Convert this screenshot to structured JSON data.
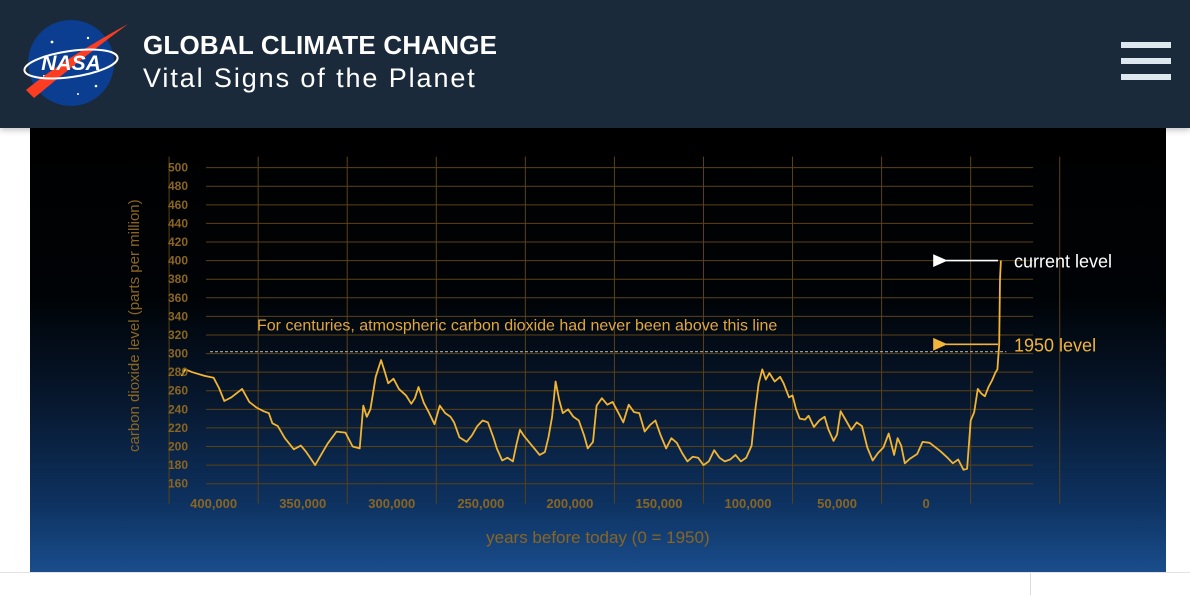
{
  "header": {
    "logo_text": "NASA",
    "title": "GLOBAL CLIMATE CHANGE",
    "subtitle": "Vital Signs of the Planet"
  },
  "colors": {
    "header_bg": "#1b2a3b",
    "grid": "#5b4215",
    "tick_text": "#8a6522",
    "series": "#f1b433",
    "annotation_gold": "#f2b43b",
    "annotation_white": "#ffffff"
  },
  "chart_data": {
    "type": "line",
    "title": "",
    "xlabel": "years before today (0 = 1950)",
    "ylabel": "carbon dioxide level (parts per million)",
    "xlim": [
      420000,
      -60000
    ],
    "ylim": [
      150,
      505
    ],
    "x_ticks": [
      {
        "value": 400000,
        "label": "400,000"
      },
      {
        "value": 350000,
        "label": "350,000"
      },
      {
        "value": 300000,
        "label": "300,000"
      },
      {
        "value": 250000,
        "label": "250,000"
      },
      {
        "value": 200000,
        "label": "200,000"
      },
      {
        "value": 150000,
        "label": "150,000"
      },
      {
        "value": 100000,
        "label": "100,000"
      },
      {
        "value": 50000,
        "label": "50,000"
      },
      {
        "value": 0,
        "label": "0"
      }
    ],
    "y_ticks": [
      160,
      180,
      200,
      220,
      240,
      260,
      280,
      300,
      320,
      340,
      360,
      380,
      400,
      420,
      440,
      460,
      480,
      500
    ],
    "series": [
      {
        "name": "CO2 concentration",
        "points": [
          [
            418000,
            276
          ],
          [
            416000,
            283
          ],
          [
            412000,
            280
          ],
          [
            405000,
            276
          ],
          [
            400000,
            274
          ],
          [
            397000,
            263
          ],
          [
            394000,
            249
          ],
          [
            390000,
            253
          ],
          [
            384000,
            262
          ],
          [
            380000,
            248
          ],
          [
            376000,
            242
          ],
          [
            372000,
            238
          ],
          [
            369000,
            236
          ],
          [
            367000,
            225
          ],
          [
            364000,
            222
          ],
          [
            360000,
            209
          ],
          [
            355000,
            197
          ],
          [
            351000,
            201
          ],
          [
            348000,
            194
          ],
          [
            343000,
            180
          ],
          [
            340000,
            190
          ],
          [
            336000,
            203
          ],
          [
            331000,
            216
          ],
          [
            326000,
            215
          ],
          [
            322000,
            200
          ],
          [
            318000,
            198
          ],
          [
            316000,
            244
          ],
          [
            314000,
            232
          ],
          [
            312000,
            240
          ],
          [
            309000,
            275
          ],
          [
            306000,
            293
          ],
          [
            304000,
            281
          ],
          [
            302000,
            268
          ],
          [
            299000,
            273
          ],
          [
            296000,
            262
          ],
          [
            292000,
            255
          ],
          [
            289000,
            246
          ],
          [
            287000,
            252
          ],
          [
            285000,
            264
          ],
          [
            282000,
            247
          ],
          [
            279000,
            236
          ],
          [
            276000,
            224
          ],
          [
            273000,
            244
          ],
          [
            270000,
            236
          ],
          [
            267000,
            232
          ],
          [
            265000,
            226
          ],
          [
            262000,
            210
          ],
          [
            258000,
            205
          ],
          [
            255000,
            212
          ],
          [
            252000,
            222
          ],
          [
            249000,
            228
          ],
          [
            246000,
            226
          ],
          [
            243000,
            210
          ],
          [
            241000,
            198
          ],
          [
            238000,
            185
          ],
          [
            235000,
            188
          ],
          [
            232000,
            184
          ],
          [
            230000,
            202
          ],
          [
            228000,
            218
          ],
          [
            226000,
            212
          ],
          [
            223000,
            205
          ],
          [
            220000,
            198
          ],
          [
            217000,
            191
          ],
          [
            214000,
            194
          ],
          [
            212000,
            210
          ],
          [
            210000,
            232
          ],
          [
            208000,
            270
          ],
          [
            206000,
            250
          ],
          [
            204000,
            236
          ],
          [
            201000,
            240
          ],
          [
            198000,
            232
          ],
          [
            195000,
            228
          ],
          [
            192000,
            212
          ],
          [
            190000,
            198
          ],
          [
            187000,
            205
          ],
          [
            185000,
            244
          ],
          [
            182000,
            252
          ],
          [
            179000,
            245
          ],
          [
            176000,
            248
          ],
          [
            173000,
            237
          ],
          [
            170000,
            226
          ],
          [
            167000,
            245
          ],
          [
            164000,
            237
          ],
          [
            161000,
            236
          ],
          [
            158000,
            216
          ],
          [
            155000,
            223
          ],
          [
            152000,
            228
          ],
          [
            149000,
            212
          ],
          [
            146000,
            198
          ],
          [
            143000,
            209
          ],
          [
            140000,
            204
          ],
          [
            137000,
            193
          ],
          [
            134000,
            184
          ],
          [
            131000,
            189
          ],
          [
            128000,
            188
          ],
          [
            125000,
            180
          ],
          [
            122000,
            184
          ],
          [
            119000,
            196
          ],
          [
            116000,
            188
          ],
          [
            113000,
            184
          ],
          [
            110000,
            186
          ],
          [
            107000,
            191
          ],
          [
            104000,
            184
          ],
          [
            101000,
            188
          ],
          [
            98000,
            201
          ],
          [
            96000,
            238
          ],
          [
            94000,
            268
          ],
          [
            92000,
            283
          ],
          [
            90000,
            272
          ],
          [
            88000,
            279
          ],
          [
            85000,
            270
          ],
          [
            82000,
            275
          ],
          [
            80000,
            268
          ],
          [
            77000,
            253
          ],
          [
            75000,
            255
          ],
          [
            73000,
            240
          ],
          [
            71000,
            230
          ],
          [
            68000,
            229
          ],
          [
            66000,
            233
          ],
          [
            63000,
            221
          ],
          [
            60000,
            228
          ],
          [
            57000,
            232
          ],
          [
            55000,
            219
          ],
          [
            52000,
            206
          ],
          [
            50000,
            213
          ],
          [
            48000,
            238
          ],
          [
            45000,
            228
          ],
          [
            42000,
            218
          ],
          [
            39000,
            226
          ],
          [
            36000,
            222
          ],
          [
            33000,
            199
          ],
          [
            30000,
            185
          ],
          [
            27000,
            193
          ],
          [
            24000,
            199
          ],
          [
            21000,
            214
          ],
          [
            18000,
            191
          ],
          [
            16000,
            209
          ],
          [
            14000,
            201
          ],
          [
            12000,
            182
          ],
          [
            9000,
            187
          ],
          [
            5000,
            192
          ],
          [
            2000,
            205
          ],
          [
            -2000,
            204
          ],
          [
            -8000,
            195
          ],
          [
            -12000,
            188
          ],
          [
            -15000,
            182
          ],
          [
            -18000,
            186
          ],
          [
            -21000,
            175
          ],
          [
            -23000,
            176
          ],
          [
            -25000,
            228
          ],
          [
            -27000,
            237
          ],
          [
            -29000,
            262
          ],
          [
            -31000,
            257
          ],
          [
            -33000,
            254
          ],
          [
            -35000,
            264
          ],
          [
            -37000,
            271
          ],
          [
            -39000,
            280
          ],
          [
            -40000,
            283
          ],
          [
            -41000,
            310
          ],
          [
            -41500,
            380
          ],
          [
            -42000,
            400
          ]
        ]
      }
    ],
    "reference_line": {
      "y": 302,
      "label": "For centuries, atmospheric carbon dioxide had never been above this line"
    },
    "annotations": [
      {
        "label": "current level",
        "y": 400,
        "color": "white"
      },
      {
        "label": "1950 level",
        "y": 310,
        "color": "gold"
      }
    ]
  }
}
